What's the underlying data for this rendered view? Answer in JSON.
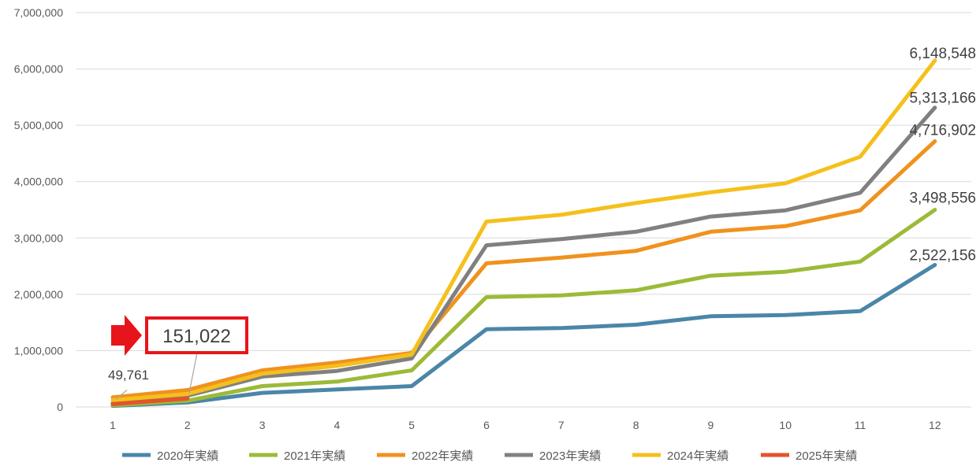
{
  "chart_data": {
    "type": "line",
    "x": [
      1,
      2,
      3,
      4,
      5,
      6,
      7,
      8,
      9,
      10,
      11,
      12
    ],
    "ylim": [
      0,
      7000000
    ],
    "yticks": [
      0,
      1000000,
      2000000,
      3000000,
      4000000,
      5000000,
      6000000,
      7000000
    ],
    "ytick_labels": [
      "0",
      "1,000,000",
      "2,000,000",
      "3,000,000",
      "4,000,000",
      "5,000,000",
      "6,000,000",
      "7,000,000"
    ],
    "xtick_labels": [
      "1",
      "2",
      "3",
      "4",
      "5",
      "6",
      "7",
      "8",
      "9",
      "10",
      "11",
      "12"
    ],
    "grid": true,
    "legend_position": "bottom",
    "series": [
      {
        "name": "2020年実績",
        "color": "#4a86a8",
        "values": [
          20000,
          80000,
          250000,
          310000,
          370000,
          1380000,
          1400000,
          1460000,
          1610000,
          1630000,
          1700000,
          2522156
        ]
      },
      {
        "name": "2021年実績",
        "color": "#9bbb38",
        "values": [
          30000,
          110000,
          370000,
          450000,
          650000,
          1950000,
          1980000,
          2070000,
          2330000,
          2400000,
          2580000,
          3498556
        ]
      },
      {
        "name": "2022年実績",
        "color": "#f0921e",
        "values": [
          170000,
          300000,
          650000,
          790000,
          960000,
          2550000,
          2650000,
          2770000,
          3110000,
          3210000,
          3490000,
          4716902
        ]
      },
      {
        "name": "2023年実績",
        "color": "#808080",
        "values": [
          70000,
          200000,
          540000,
          640000,
          860000,
          2870000,
          2980000,
          3110000,
          3380000,
          3490000,
          3800000,
          5313166
        ]
      },
      {
        "name": "2024年実績",
        "color": "#f5c01c",
        "values": [
          120000,
          230000,
          590000,
          730000,
          930000,
          3290000,
          3410000,
          3620000,
          3810000,
          3970000,
          4440000,
          6148548
        ]
      },
      {
        "name": "2025年実績",
        "color": "#e4532b",
        "values": [
          49761,
          151022,
          null,
          null,
          null,
          null,
          null,
          null,
          null,
          null,
          null,
          null
        ]
      }
    ],
    "annotations": {
      "end_labels": [
        {
          "series": "2024年実績",
          "text": "6,148,548"
        },
        {
          "series": "2023年実績",
          "text": "5,313,166"
        },
        {
          "series": "2022年実績",
          "text": "4,716,902"
        },
        {
          "series": "2021年実績",
          "text": "3,498,556"
        },
        {
          "series": "2020年実績",
          "text": "2,522,156"
        }
      ],
      "small_label": {
        "text": "49,761",
        "x": 1,
        "y": 49761
      },
      "highlight_label": {
        "text": "151,022",
        "x": 2,
        "y": 151022,
        "box_color": "#e8141b"
      }
    }
  }
}
